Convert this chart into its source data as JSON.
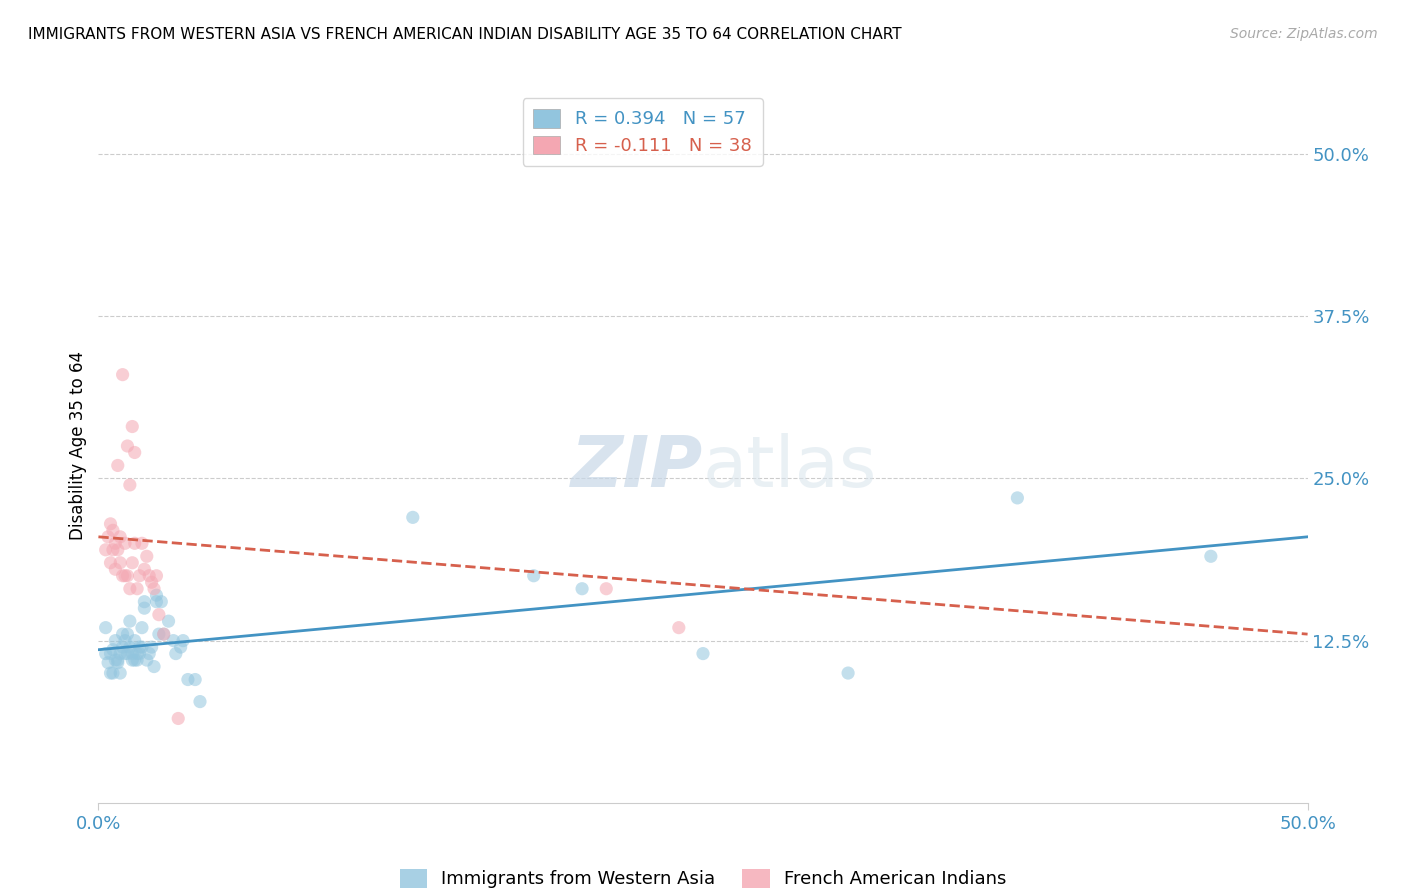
{
  "title": "IMMIGRANTS FROM WESTERN ASIA VS FRENCH AMERICAN INDIAN DISABILITY AGE 35 TO 64 CORRELATION CHART",
  "source": "Source: ZipAtlas.com",
  "ylabel": "Disability Age 35 to 64",
  "ytick_values": [
    0.125,
    0.25,
    0.375,
    0.5
  ],
  "xlim": [
    0.0,
    0.5
  ],
  "ylim": [
    0.0,
    0.55
  ],
  "watermark_zip": "ZIP",
  "watermark_atlas": "atlas",
  "legend_r1": "R = 0.394",
  "legend_n1": "N = 57",
  "legend_r2": "R = -0.111",
  "legend_n2": "N = 38",
  "blue_color": "#92c5de",
  "pink_color": "#f4a7b2",
  "blue_line_color": "#4393c3",
  "pink_line_color": "#d6604d",
  "blue_scatter": [
    [
      0.003,
      0.115
    ],
    [
      0.004,
      0.108
    ],
    [
      0.005,
      0.1
    ],
    [
      0.005,
      0.115
    ],
    [
      0.006,
      0.118
    ],
    [
      0.006,
      0.1
    ],
    [
      0.007,
      0.11
    ],
    [
      0.007,
      0.125
    ],
    [
      0.008,
      0.11
    ],
    [
      0.008,
      0.108
    ],
    [
      0.009,
      0.115
    ],
    [
      0.009,
      0.1
    ],
    [
      0.01,
      0.13
    ],
    [
      0.01,
      0.12
    ],
    [
      0.011,
      0.125
    ],
    [
      0.011,
      0.115
    ],
    [
      0.012,
      0.115
    ],
    [
      0.012,
      0.13
    ],
    [
      0.013,
      0.14
    ],
    [
      0.013,
      0.12
    ],
    [
      0.014,
      0.115
    ],
    [
      0.014,
      0.11
    ],
    [
      0.015,
      0.125
    ],
    [
      0.015,
      0.11
    ],
    [
      0.016,
      0.115
    ],
    [
      0.016,
      0.11
    ],
    [
      0.017,
      0.12
    ],
    [
      0.017,
      0.115
    ],
    [
      0.018,
      0.135
    ],
    [
      0.018,
      0.12
    ],
    [
      0.019,
      0.155
    ],
    [
      0.019,
      0.15
    ],
    [
      0.02,
      0.11
    ],
    [
      0.021,
      0.115
    ],
    [
      0.022,
      0.12
    ],
    [
      0.023,
      0.105
    ],
    [
      0.024,
      0.16
    ],
    [
      0.024,
      0.155
    ],
    [
      0.025,
      0.13
    ],
    [
      0.026,
      0.155
    ],
    [
      0.027,
      0.13
    ],
    [
      0.029,
      0.14
    ],
    [
      0.031,
      0.125
    ],
    [
      0.032,
      0.115
    ],
    [
      0.034,
      0.12
    ],
    [
      0.035,
      0.125
    ],
    [
      0.037,
      0.095
    ],
    [
      0.04,
      0.095
    ],
    [
      0.042,
      0.078
    ],
    [
      0.13,
      0.22
    ],
    [
      0.18,
      0.175
    ],
    [
      0.2,
      0.165
    ],
    [
      0.25,
      0.115
    ],
    [
      0.31,
      0.1
    ],
    [
      0.38,
      0.235
    ],
    [
      0.46,
      0.19
    ],
    [
      0.003,
      0.135
    ]
  ],
  "pink_scatter": [
    [
      0.003,
      0.195
    ],
    [
      0.004,
      0.205
    ],
    [
      0.005,
      0.215
    ],
    [
      0.005,
      0.185
    ],
    [
      0.006,
      0.195
    ],
    [
      0.006,
      0.21
    ],
    [
      0.007,
      0.2
    ],
    [
      0.007,
      0.18
    ],
    [
      0.008,
      0.195
    ],
    [
      0.008,
      0.26
    ],
    [
      0.009,
      0.185
    ],
    [
      0.009,
      0.205
    ],
    [
      0.01,
      0.175
    ],
    [
      0.01,
      0.33
    ],
    [
      0.011,
      0.175
    ],
    [
      0.011,
      0.2
    ],
    [
      0.012,
      0.275
    ],
    [
      0.012,
      0.175
    ],
    [
      0.013,
      0.165
    ],
    [
      0.013,
      0.245
    ],
    [
      0.014,
      0.29
    ],
    [
      0.014,
      0.185
    ],
    [
      0.015,
      0.27
    ],
    [
      0.015,
      0.2
    ],
    [
      0.016,
      0.165
    ],
    [
      0.017,
      0.175
    ],
    [
      0.018,
      0.2
    ],
    [
      0.019,
      0.18
    ],
    [
      0.02,
      0.19
    ],
    [
      0.021,
      0.175
    ],
    [
      0.022,
      0.17
    ],
    [
      0.023,
      0.165
    ],
    [
      0.024,
      0.175
    ],
    [
      0.025,
      0.145
    ],
    [
      0.027,
      0.13
    ],
    [
      0.033,
      0.065
    ],
    [
      0.21,
      0.165
    ],
    [
      0.24,
      0.135
    ]
  ],
  "blue_line_x": [
    0.0,
    0.5
  ],
  "blue_line_y": [
    0.118,
    0.205
  ],
  "pink_line_x": [
    0.0,
    0.5
  ],
  "pink_line_y": [
    0.205,
    0.13
  ],
  "marker_size": 90,
  "alpha": 0.55
}
